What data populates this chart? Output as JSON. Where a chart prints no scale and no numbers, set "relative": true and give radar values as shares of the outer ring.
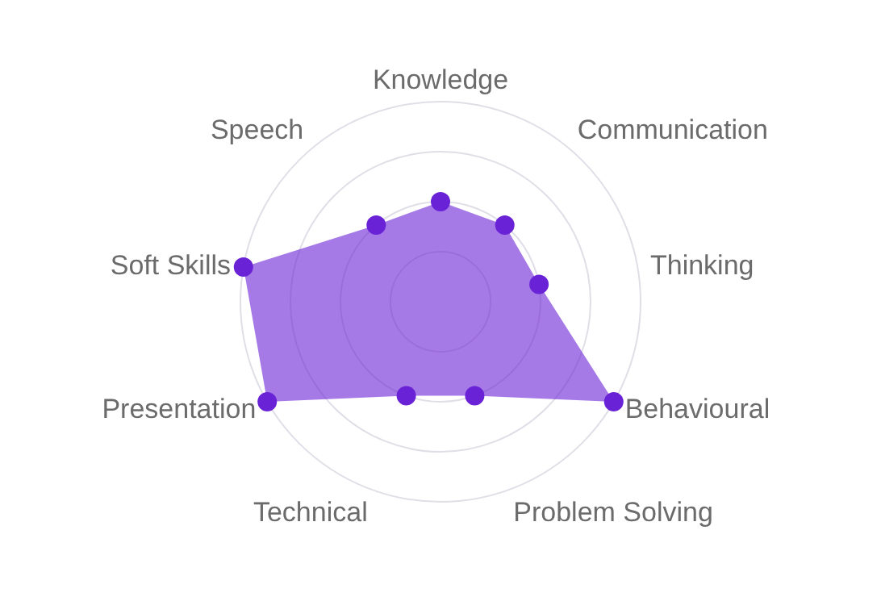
{
  "chart_data": {
    "type": "radar",
    "relative": true,
    "grid": true,
    "marker": "circle",
    "categories": [
      "Knowledge",
      "Communication",
      "Thinking",
      "Behavioural",
      "Problem Solving",
      "Technical",
      "Presentation",
      "Soft Skills",
      "Speech"
    ],
    "series": [
      {
        "color": "#6a22d6",
        "values": [
          0.5,
          0.5,
          0.5,
          1,
          0.5,
          0.5,
          1,
          1,
          0.5
        ]
      }
    ]
  }
}
